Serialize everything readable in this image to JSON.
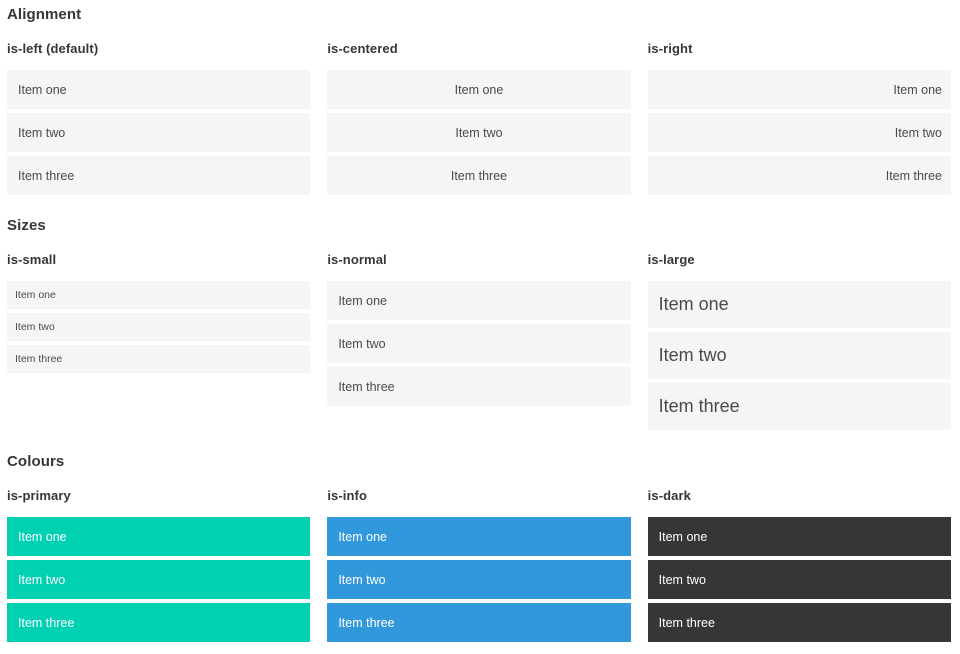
{
  "colors": {
    "heading_text": "#363636",
    "item_bg": "#f5f5f5",
    "item_text": "#4a4a4a",
    "colored_text": "#ffffff",
    "primary": "#00d1b2",
    "info": "#3298dc",
    "dark": "#363636"
  },
  "sections": [
    {
      "title": "Alignment",
      "columns": [
        {
          "label": "is-left (default)",
          "items": [
            "Item one",
            "Item two",
            "Item three"
          ]
        },
        {
          "label": "is-centered",
          "items": [
            "Item one",
            "Item two",
            "Item three"
          ]
        },
        {
          "label": "is-right",
          "items": [
            "Item one",
            "Item two",
            "Item three"
          ]
        }
      ]
    },
    {
      "title": "Sizes",
      "columns": [
        {
          "label": "is-small",
          "items": [
            "Item one",
            "Item two",
            "Item three"
          ]
        },
        {
          "label": "is-normal",
          "items": [
            "Item one",
            "Item two",
            "Item three"
          ]
        },
        {
          "label": "is-large",
          "items": [
            "Item one",
            "Item two",
            "Item three"
          ]
        }
      ]
    },
    {
      "title": "Colours",
      "columns": [
        {
          "label": "is-primary",
          "items": [
            "Item one",
            "Item two",
            "Item three"
          ]
        },
        {
          "label": "is-info",
          "items": [
            "Item one",
            "Item two",
            "Item three"
          ]
        },
        {
          "label": "is-dark",
          "items": [
            "Item one",
            "Item two",
            "Item three"
          ]
        }
      ]
    }
  ]
}
